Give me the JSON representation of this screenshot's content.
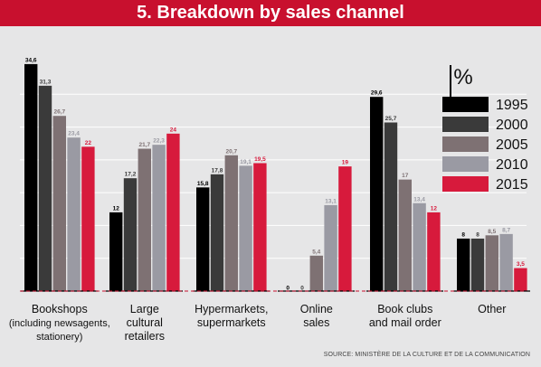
{
  "title": "5. Breakdown by sales channel",
  "source": "SOURCE: MINISTÈRE DE LA CULTURE ET DE LA COMMUNICATION",
  "colors": {
    "title_bg": "#c8102e",
    "background": "#e6e6e7",
    "s1995": "#000000",
    "s2000": "#3a3a3a",
    "s2005": "#7e7173",
    "s2010": "#9a9aa3",
    "s2015": "#d71a3c"
  },
  "chart_data": {
    "type": "bar",
    "unit_label": "%",
    "categories": [
      [
        "Bookshops",
        "(including newsagents,",
        "stationery)"
      ],
      [
        "Large",
        "cultural",
        "retailers"
      ],
      [
        "Hypermarkets,",
        "supermarkets"
      ],
      [
        "Online",
        "sales"
      ],
      [
        "Book clubs",
        "and mail order"
      ],
      [
        "Other"
      ]
    ],
    "series": [
      {
        "name": "1995",
        "color": "#000000",
        "values": [
          34.6,
          12,
          15.8,
          0,
          29.6,
          8
        ],
        "labels": [
          "34,6",
          "12",
          "15,8",
          "0",
          "29,6",
          "8"
        ]
      },
      {
        "name": "2000",
        "color": "#3a3a3a",
        "values": [
          31.3,
          17.2,
          17.8,
          0,
          25.7,
          8
        ],
        "labels": [
          "31,3",
          "17,2",
          "17,8",
          "0",
          "25,7",
          "8"
        ]
      },
      {
        "name": "2005",
        "color": "#7e7173",
        "values": [
          26.7,
          21.7,
          20.7,
          5.4,
          17,
          8.5
        ],
        "labels": [
          "26,7",
          "21,7",
          "20,7",
          "5,4",
          "17",
          "8,5"
        ]
      },
      {
        "name": "2010",
        "color": "#9a9aa3",
        "values": [
          23.4,
          22.3,
          19.1,
          13.1,
          13.4,
          8.7
        ],
        "labels": [
          "23,4",
          "22,3",
          "19,1",
          "13,1",
          "13,4",
          "8,7"
        ]
      },
      {
        "name": "2015",
        "color": "#d71a3c",
        "values": [
          22,
          24,
          19.5,
          19,
          12,
          3.5
        ],
        "labels": [
          "22",
          "24",
          "19,5",
          "19",
          "12",
          "3,5"
        ]
      }
    ],
    "ylim": [
      0,
      35
    ],
    "grid": true,
    "legend": "right"
  }
}
